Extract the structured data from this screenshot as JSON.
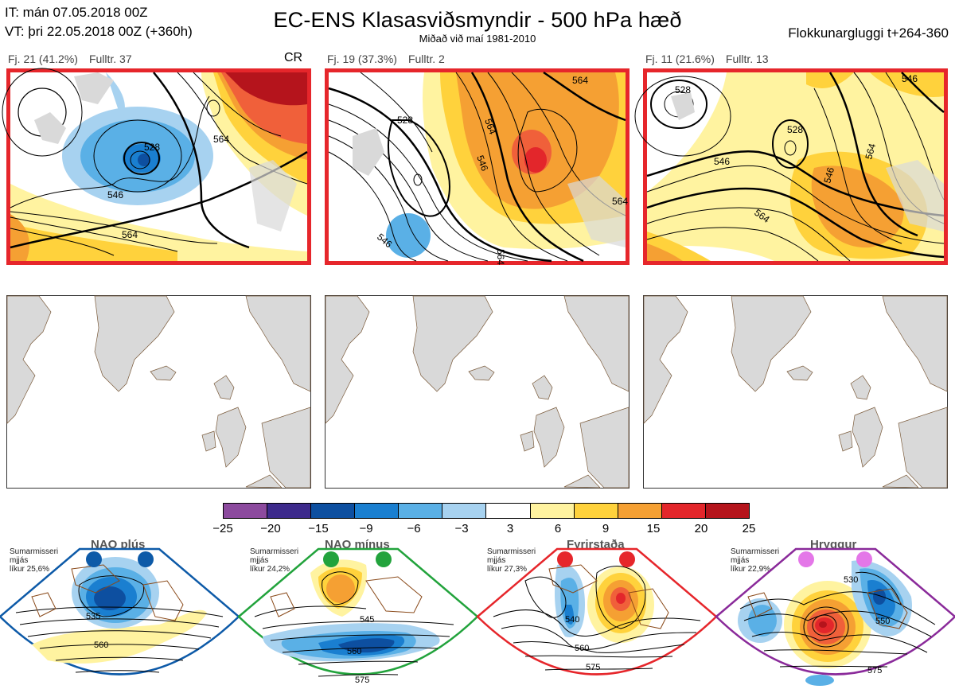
{
  "header": {
    "it_line": "IT: mán 07.05.2018 00Z",
    "vt_line": "VT: þri 22.05.2018 00Z  (+360h)",
    "title": "EC-ENS Klasasviðsmyndir - 500 hPa hæð",
    "subtitle": "Miðað við maí 1981-2010",
    "window": "Flokkunargluggi t+264-360"
  },
  "clusters": [
    {
      "fj": "Fj. 21 (41.2%)",
      "fulltr": "Fulltr. 37",
      "regime_code": "CR",
      "contour_labels": [
        "528",
        "546",
        "564",
        "564"
      ]
    },
    {
      "fj": "Fj. 19 (37.3%)",
      "fulltr": "Fulltr. 2",
      "regime_code": "",
      "contour_labels": [
        "528",
        "546",
        "546",
        "564",
        "564",
        "564",
        "564"
      ]
    },
    {
      "fj": "Fj. 11 (21.6%)",
      "fulltr": "Fulltr. 13",
      "regime_code": "",
      "contour_labels": [
        "528",
        "528",
        "546",
        "546",
        "564",
        "564",
        "546"
      ]
    }
  ],
  "colorbar": {
    "ticks": [
      "−25",
      "−20",
      "−15",
      "−9",
      "−6",
      "−3",
      "3",
      "6",
      "9",
      "15",
      "20",
      "25"
    ],
    "colors": [
      "#8c4a9e",
      "#3d2a8c",
      "#0d4fa0",
      "#1a7fd0",
      "#5ab0e6",
      "#a7d2f0",
      "#ffffff",
      "#fff3a0",
      "#ffd23c",
      "#f5a033",
      "#f0603a",
      "#e3262b",
      "#b5141c"
    ]
  },
  "regimes": [
    {
      "name": "NAO plús",
      "note": [
        "Sumarmisseri",
        "mjjás",
        "líkur 25,6%"
      ],
      "color": "#0d5aa8",
      "labels": [
        "535",
        "560"
      ]
    },
    {
      "name": "NAO mínus",
      "note": [
        "Sumarmisseri",
        "mjjás",
        "líkur 24,2%"
      ],
      "color": "#22a33c",
      "labels": [
        "545",
        "560",
        "575"
      ]
    },
    {
      "name": "Fyrirstaða",
      "note": [
        "Sumarmisseri",
        "mjjás",
        "líkur 27,3%"
      ],
      "color": "#e6262b",
      "labels": [
        "540",
        "560",
        "575"
      ]
    },
    {
      "name": "Hryggur",
      "note": [
        "Sumarmisseri",
        "mjjás",
        "líkur 22,9%"
      ],
      "color": "#8a2a9a",
      "labels": [
        "530",
        "550",
        "575"
      ]
    }
  ]
}
